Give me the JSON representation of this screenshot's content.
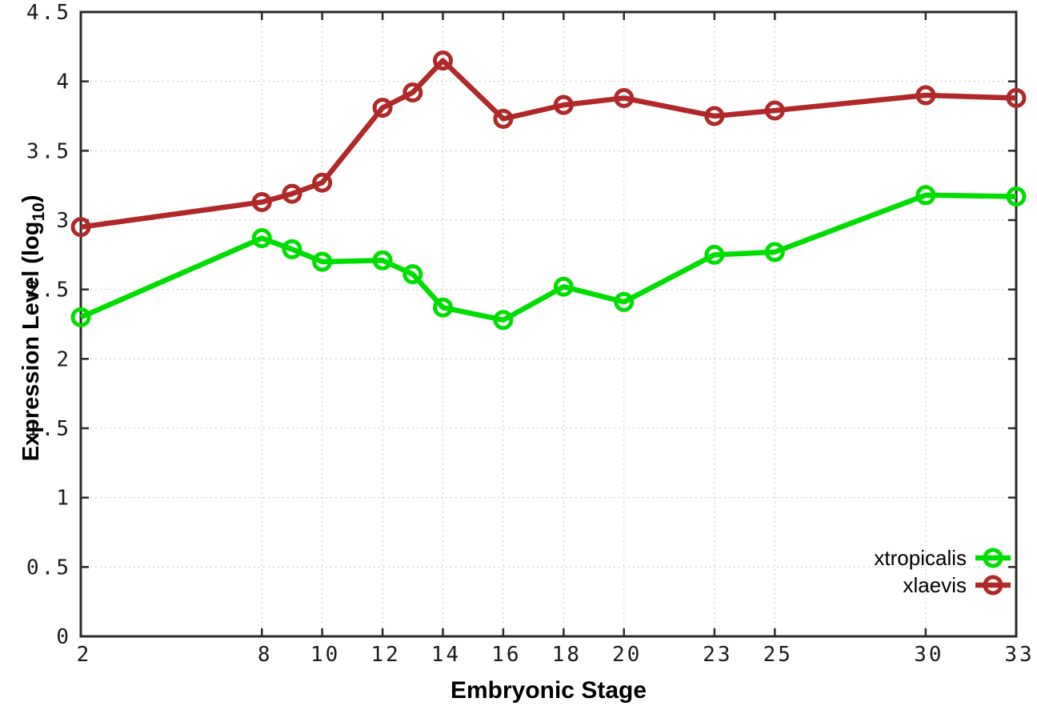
{
  "chart_data": {
    "type": "line",
    "x": [
      2,
      8,
      9,
      10,
      12,
      13,
      14,
      16,
      18,
      20,
      23,
      25,
      30,
      33
    ],
    "series": [
      {
        "name": "xtropicalis",
        "color": "#00dd00",
        "values": [
          2.3,
          2.87,
          2.79,
          2.7,
          2.71,
          2.61,
          2.37,
          2.28,
          2.52,
          2.41,
          2.75,
          2.77,
          3.18,
          3.17
        ]
      },
      {
        "name": "xlaevis",
        "color": "#b02828",
        "values": [
          2.95,
          3.13,
          3.19,
          3.27,
          3.81,
          3.92,
          4.15,
          3.73,
          3.83,
          3.88,
          3.75,
          3.79,
          3.9,
          3.88
        ]
      }
    ],
    "title": "",
    "xlabel": "Embryonic Stage",
    "ylabel": {
      "prefix": "Expression Level (log",
      "sub": "10",
      "suffix": ")"
    },
    "xlim": [
      2,
      33
    ],
    "ylim": [
      0,
      4.5
    ],
    "xticks": [
      2,
      8,
      10,
      12,
      14,
      16,
      18,
      20,
      23,
      25,
      30,
      33
    ],
    "yticks": [
      "0",
      "0.5",
      "1",
      "1.5",
      "2",
      "2.5",
      "3",
      "3.5",
      "4",
      "4.5"
    ],
    "grid": true,
    "grid_style": "dotted",
    "marker": "open-circle",
    "legend_position": "inside-bottom-right",
    "border_color": "#2a2a2a",
    "grid_color": "#b8b8b8",
    "background": "#ffffff"
  }
}
